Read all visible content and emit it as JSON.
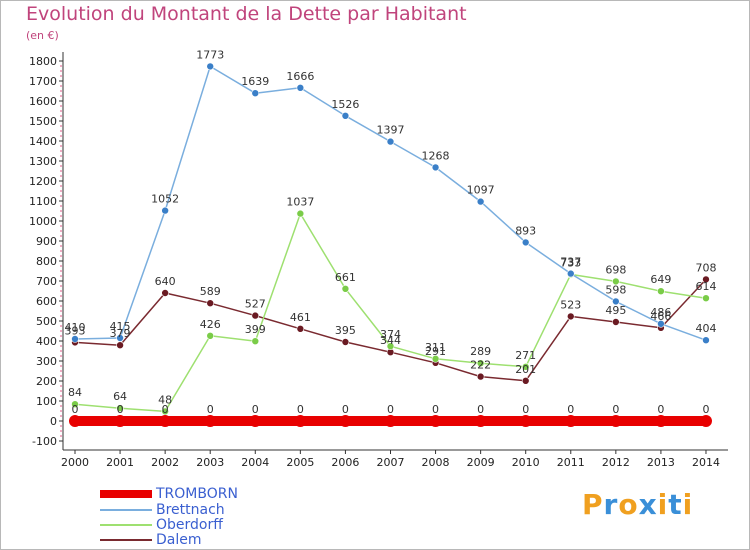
{
  "header": {
    "title": "Evolution du Montant de la Dette par Habitant",
    "subtitle": "(en €)"
  },
  "brand": {
    "logo_text": "Proxiti",
    "logo_letters": [
      {
        "char": "P",
        "color": "#f0a020"
      },
      {
        "char": "r",
        "color": "#3a8fd8"
      },
      {
        "char": "o",
        "color": "#f0a020"
      },
      {
        "char": "x",
        "color": "#3a8fd8"
      },
      {
        "char": "i",
        "color": "#f0a020"
      },
      {
        "char": "t",
        "color": "#3a8fd8"
      },
      {
        "char": "i",
        "color": "#f0a020"
      }
    ]
  },
  "chart_data": {
    "type": "line",
    "title": "Evolution du Montant de la Dette par Habitant",
    "subtitle": "(en €)",
    "x": [
      "2000",
      "2001",
      "2002",
      "2003",
      "2004",
      "2005",
      "2006",
      "2007",
      "2008",
      "2009",
      "2010",
      "2011",
      "2012",
      "2013",
      "2014"
    ],
    "y_ticks": [
      "-100",
      "0",
      "100",
      "200",
      "300",
      "400",
      "500",
      "600",
      "700",
      "800",
      "900",
      "1000",
      "1100",
      "1200",
      "1300",
      "1400",
      "1500",
      "1600",
      "1700",
      "1800"
    ],
    "ylim": [
      -100,
      1800
    ],
    "grid": false,
    "legend_position": "bottom-left",
    "series": [
      {
        "name": "TROMBORN",
        "color": "#e80000",
        "marker": "#e80000",
        "values": [
          0,
          0,
          0,
          0,
          0,
          0,
          0,
          0,
          0,
          0,
          0,
          0,
          0,
          0,
          0
        ],
        "labels": [
          "0",
          "0",
          "0",
          "0",
          "0",
          "0",
          "0",
          "0",
          "0",
          "0",
          "0",
          "0",
          "0",
          "0",
          "0"
        ]
      },
      {
        "name": "Brettnach",
        "color": "#7aaede",
        "marker": "#3a7fc8",
        "values": [
          410,
          415,
          1052,
          1773,
          1639,
          1666,
          1526,
          1397,
          1268,
          1097,
          893,
          737,
          598,
          486,
          404
        ],
        "labels": [
          "410",
          "415",
          "1052",
          "1773",
          "1639",
          "1666",
          "1526",
          "1397",
          "1268",
          "1097",
          "893",
          "737",
          "598",
          "486",
          "404"
        ]
      },
      {
        "name": "Oberdorff",
        "color": "#9ee070",
        "marker": "#7acc48",
        "values": [
          84,
          64,
          48,
          426,
          399,
          1037,
          661,
          374,
          311,
          289,
          271,
          733,
          698,
          649,
          614
        ],
        "labels": [
          "84",
          "64",
          "48",
          "426",
          "399",
          "1037",
          "661",
          "374",
          "311",
          "289",
          "271",
          "733",
          "698",
          "649",
          "614"
        ]
      },
      {
        "name": "Dalem",
        "color": "#7a2a30",
        "marker": "#6a1a22",
        "values": [
          393,
          379,
          640,
          589,
          527,
          461,
          395,
          344,
          291,
          222,
          201,
          523,
          495,
          466,
          708
        ],
        "labels": [
          "393",
          "379",
          "640",
          "589",
          "527",
          "461",
          "395",
          "344",
          "291",
          "222",
          "201",
          "523",
          "495",
          "466",
          "708"
        ]
      }
    ]
  }
}
